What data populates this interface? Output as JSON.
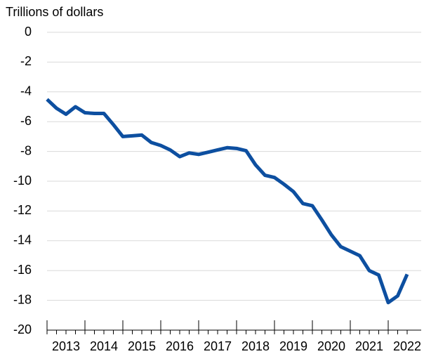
{
  "chart_data": {
    "type": "line",
    "y_label": "Trillions of dollars",
    "categories": [
      null,
      null,
      "2013",
      null,
      null,
      null,
      "2014",
      null,
      null,
      null,
      "2015",
      null,
      null,
      null,
      "2016",
      null,
      null,
      null,
      "2017",
      null,
      null,
      null,
      "2018",
      null,
      null,
      null,
      "2019",
      null,
      null,
      null,
      "2020",
      null,
      null,
      null,
      "2021",
      null,
      null,
      null,
      "2022"
    ],
    "series": [
      {
        "color": "#0d4fa0",
        "values": [
          -4.5,
          -5.1,
          -5.5,
          -5.0,
          -5.4,
          -5.45,
          -5.45,
          -6.2,
          -7.0,
          -6.95,
          -6.9,
          -7.4,
          -7.6,
          -7.9,
          -8.35,
          -8.1,
          -8.2,
          -8.05,
          -7.9,
          -7.75,
          -7.8,
          -7.95,
          -8.9,
          -9.6,
          -9.75,
          -10.2,
          -10.7,
          -11.5,
          -11.65,
          -12.6,
          -13.6,
          -14.4,
          -14.7,
          -15.0,
          -16.0,
          -16.3,
          -18.15,
          -17.7,
          -16.25
        ]
      }
    ],
    "ylim": [
      -20,
      0
    ],
    "yticks": [
      0,
      -2,
      -4,
      -6,
      -8,
      -10,
      -12,
      -14,
      -16,
      -18,
      -20
    ],
    "grid": true
  }
}
